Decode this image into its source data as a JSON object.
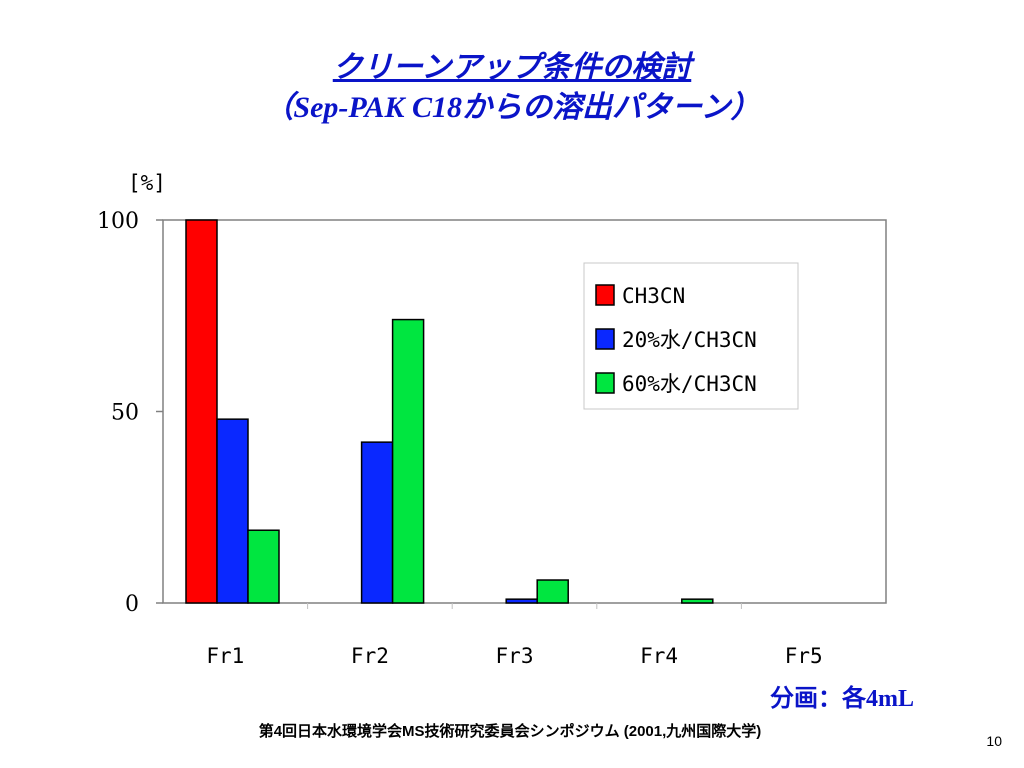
{
  "slide": {
    "title_line1": "クリーンアップ条件の検討",
    "title_line2": "（Sep-PAK C18からの溶出パターン）",
    "note": "分画：各4mL",
    "footer": "第4回日本水環境学会MS技術研究委員会シンポジウム (2001,九州国際大学)",
    "page_number": "10"
  },
  "chart_data": {
    "type": "bar",
    "title": "",
    "ylabel": "[%]",
    "xlabel": "",
    "categories": [
      "Fr1",
      "Fr2",
      "Fr3",
      "Fr4",
      "Fr5"
    ],
    "ylim": [
      0,
      100
    ],
    "yticks": [
      0,
      50,
      100
    ],
    "grid": false,
    "legend_position": "top-right",
    "series": [
      {
        "name": "CH3CN",
        "color": "#ff0000",
        "values": [
          100,
          0,
          0,
          0,
          0
        ]
      },
      {
        "name": "20%水/CH3CN",
        "color": "#0a28ff",
        "values": [
          48,
          42,
          1,
          0,
          0
        ]
      },
      {
        "name": "60%水/CH3CN",
        "color": "#00e640",
        "values": [
          19,
          74,
          6,
          1,
          0
        ]
      }
    ]
  }
}
